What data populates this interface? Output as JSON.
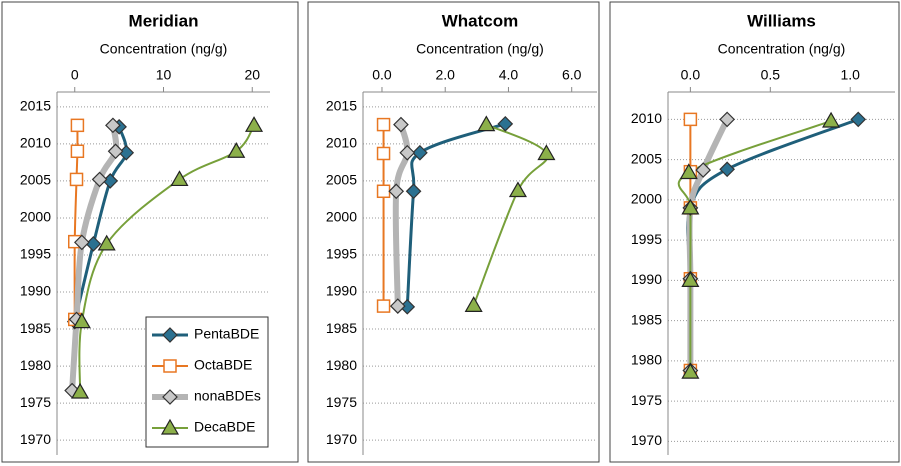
{
  "chart_data": [
    {
      "type": "scatter",
      "title": "Meridian",
      "x_label": "Concentration (ng/g)",
      "xlim": [
        -2,
        22
      ],
      "xticks": [
        0,
        10,
        20
      ],
      "ylim": [
        1968,
        2017
      ],
      "yticks": [
        1970,
        1975,
        1980,
        1985,
        1990,
        1995,
        2000,
        2005,
        2010,
        2015
      ],
      "grid": true,
      "legend": "lower right",
      "series": [
        {
          "name": "PentaBDE",
          "color": "#1f5f7a",
          "marker": "diamond",
          "marker_fill": "#2b7191",
          "line_width": 3,
          "x": [
            5.0,
            5.8,
            4.0,
            2.1,
            0.0
          ],
          "y": [
            2012.3,
            2008.8,
            2005,
            1996.5,
            1986
          ]
        },
        {
          "name": "OctaBDE",
          "color": "#e87722",
          "marker": "square",
          "marker_fill": "#ffffff",
          "line_width": 2,
          "x": [
            0.3,
            0.3,
            0.2,
            0.0,
            0.0
          ],
          "y": [
            2012.5,
            2009,
            2005.2,
            1996.8,
            1986.3
          ]
        },
        {
          "name": "nonaBDEs",
          "color": "#b4b4b4",
          "marker": "diamond",
          "marker_fill": "#c8c8c8",
          "line_width": 6,
          "x": [
            4.3,
            4.6,
            2.8,
            0.8,
            0.2,
            -0.3
          ],
          "y": [
            2012.5,
            2009,
            2005.2,
            1996.7,
            1986.3,
            1976.7
          ]
        },
        {
          "name": "DecaBDE",
          "color": "#77a03a",
          "marker": "triangle",
          "marker_fill": "#8cb04a",
          "line_width": 2,
          "x": [
            20.2,
            18.2,
            11.8,
            3.6,
            0.8,
            0.6
          ],
          "y": [
            2012.5,
            2009,
            2005.2,
            1996.5,
            1986,
            1976.5
          ]
        }
      ]
    },
    {
      "type": "scatter",
      "title": "Whatcom",
      "x_label": "Concentration (ng/g)",
      "xlim": [
        -0.6,
        6.8
      ],
      "xticks": [
        {
          "value": 0,
          "label": "0.0"
        },
        {
          "value": 2,
          "label": "2.0"
        },
        {
          "value": 4,
          "label": "4.0"
        },
        {
          "value": 6,
          "label": "6.0"
        }
      ],
      "ylim": [
        1968,
        2017
      ],
      "yticks": [
        1970,
        1975,
        1980,
        1985,
        1990,
        1995,
        2000,
        2005,
        2010,
        2015
      ],
      "grid": true,
      "series": [
        {
          "color": "#1f5f7a",
          "marker": "diamond",
          "marker_fill": "#2b7191",
          "line_width": 3,
          "x": [
            3.9,
            1.2,
            1.0,
            0.8
          ],
          "y": [
            2012.7,
            2008.8,
            2003.6,
            1988
          ]
        },
        {
          "color": "#e87722",
          "marker": "square",
          "marker_fill": "#ffffff",
          "line_width": 2,
          "x": [
            0.05,
            0.05,
            0.05,
            0.05
          ],
          "y": [
            2012.6,
            2008.7,
            2003.6,
            1988.1
          ]
        },
        {
          "color": "#b4b4b4",
          "marker": "diamond",
          "marker_fill": "#c8c8c8",
          "line_width": 6,
          "x": [
            0.6,
            0.8,
            0.45,
            0.5
          ],
          "y": [
            2012.6,
            2008.8,
            2003.6,
            1988.1
          ]
        },
        {
          "color": "#77a03a",
          "marker": "triangle",
          "marker_fill": "#8cb04a",
          "line_width": 2,
          "x": [
            3.3,
            5.2,
            4.3,
            2.9
          ],
          "y": [
            2012.6,
            2008.7,
            2003.7,
            1988.2
          ]
        }
      ]
    },
    {
      "type": "scatter",
      "title": "Williams",
      "x_label": "Concentration (ng/g)",
      "xlim": [
        -0.14,
        1.28
      ],
      "xticks": [
        {
          "value": 0,
          "label": "0.0"
        },
        {
          "value": 0.5,
          "label": "0.5"
        },
        {
          "value": 1,
          "label": "1.0"
        }
      ],
      "ylim": [
        1968.3,
        2013.4
      ],
      "yticks": [
        1970,
        1975,
        1980,
        1985,
        1990,
        1995,
        2000,
        2005,
        2010
      ],
      "grid": true,
      "series": [
        {
          "color": "#1f5f7a",
          "marker": "diamond",
          "marker_fill": "#2b7191",
          "line_width": 3,
          "x": [
            1.05,
            0.23,
            0.0,
            0.0,
            0.0
          ],
          "y": [
            2010,
            2003.8,
            1999,
            1990.2,
            1978.8
          ]
        },
        {
          "color": "#e87722",
          "marker": "square",
          "marker_fill": "#ffffff",
          "line_width": 2,
          "x": [
            0.0,
            0.0,
            0.0,
            0.0,
            0.0
          ],
          "y": [
            2010,
            2003.5,
            1999,
            1990.2,
            1978.8
          ]
        },
        {
          "color": "#b4b4b4",
          "marker": "diamond",
          "marker_fill": "#c8c8c8",
          "line_width": 6,
          "x": [
            0.23,
            0.08,
            0.0,
            0.0,
            0.0
          ],
          "y": [
            2010,
            2003.7,
            1999,
            1990.2,
            1978.8
          ]
        },
        {
          "color": "#77a03a",
          "marker": "triangle",
          "marker_fill": "#8cb04a",
          "line_width": 2,
          "x": [
            0.88,
            -0.01,
            0.0,
            0.0,
            0.0
          ],
          "y": [
            2009.8,
            2003.4,
            1999,
            1990,
            1978.6
          ]
        }
      ]
    }
  ]
}
